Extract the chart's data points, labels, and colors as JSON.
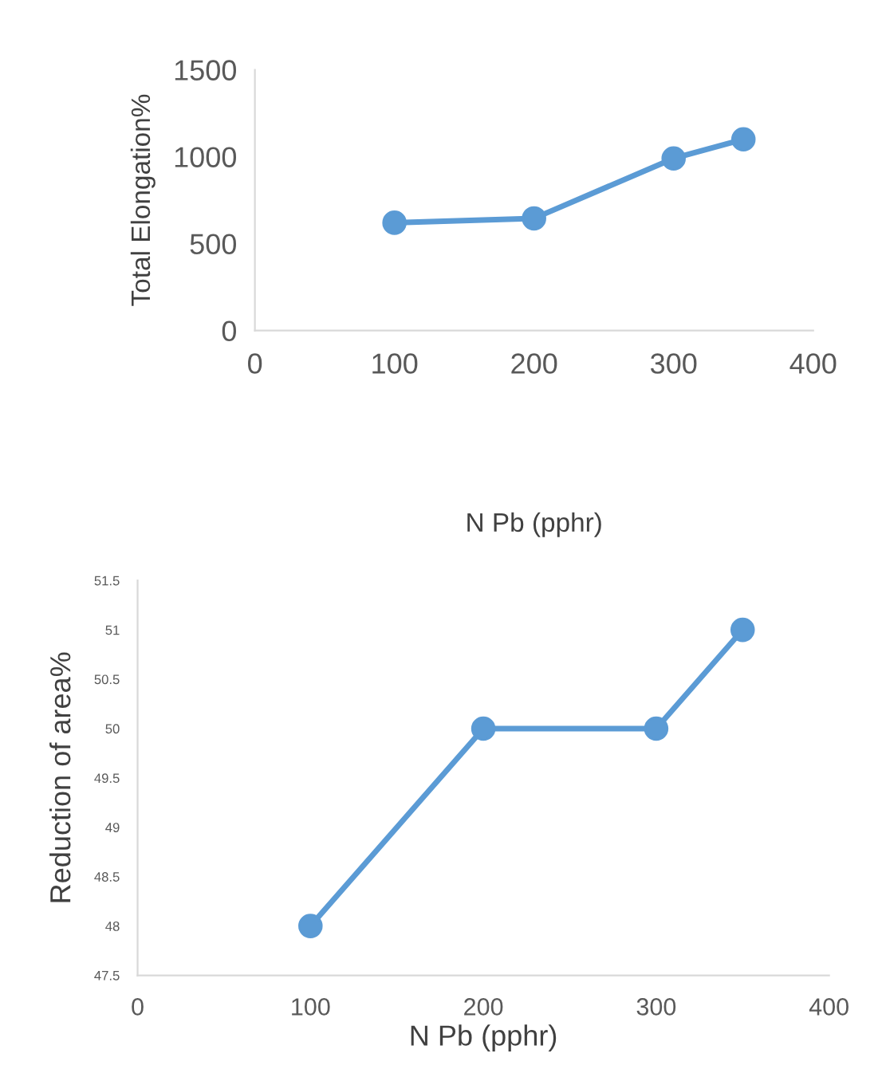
{
  "chart_data": [
    {
      "type": "line",
      "xlabel": "N Pb (pphr)",
      "ylabel": "Total Elongation%",
      "x": [
        100,
        200,
        300,
        350
      ],
      "series": [
        {
          "color": "#5b9bd5",
          "values": [
            620,
            645,
            990,
            1100
          ]
        }
      ],
      "xlim": [
        0,
        400
      ],
      "xticks": [
        0,
        100,
        200,
        300,
        400
      ],
      "ylim": [
        0,
        1500
      ],
      "yticks": [
        0,
        500,
        1000,
        1500
      ],
      "grid": false,
      "legend": false,
      "marker": "circle",
      "line_style": "solid"
    },
    {
      "type": "line",
      "xlabel": "N Pb (pphr)",
      "ylabel": "Reduction of area%",
      "x": [
        100,
        200,
        300,
        350
      ],
      "series": [
        {
          "color": "#5b9bd5",
          "values": [
            48,
            50,
            50,
            51
          ]
        }
      ],
      "xlim": [
        0,
        400
      ],
      "xticks": [
        0,
        100,
        200,
        300,
        400
      ],
      "ylim": [
        47.5,
        51.5
      ],
      "yticks": [
        47.5,
        48,
        48.5,
        49,
        49.5,
        50,
        50.5,
        51,
        51.5
      ],
      "grid": false,
      "legend": false,
      "marker": "circle",
      "line_style": "solid"
    }
  ]
}
